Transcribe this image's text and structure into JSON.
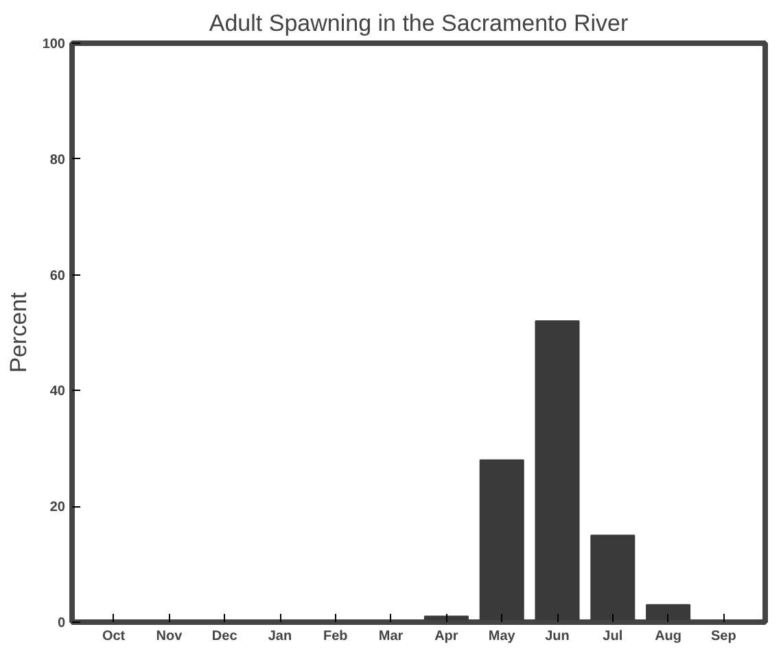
{
  "chart_data": {
    "type": "bar",
    "title": "Adult Spawning in the Sacramento River",
    "ylabel": "Percent",
    "categories": [
      "Oct",
      "Nov",
      "Dec",
      "Jan",
      "Feb",
      "Mar",
      "Apr",
      "May",
      "Jun",
      "Jul",
      "Aug",
      "Sep"
    ],
    "values": [
      0,
      0,
      0,
      0,
      0,
      0,
      1,
      28,
      52,
      15,
      3,
      0
    ],
    "color": "#3a3a3a",
    "ylim": [
      0,
      100
    ],
    "yticks": [
      0,
      20,
      40,
      60,
      80,
      100
    ],
    "grid": false
  }
}
